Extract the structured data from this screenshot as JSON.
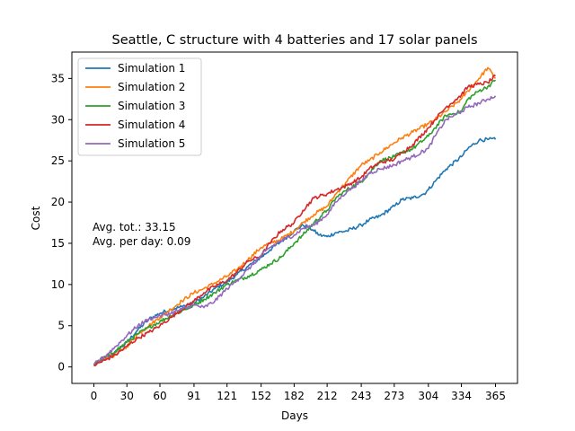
{
  "chart_data": {
    "type": "line",
    "title": "Seattle, C structure with 4 batteries and 17 solar panels",
    "xlabel": "Days",
    "ylabel": "Cost",
    "xlim": [
      -20,
      385
    ],
    "ylim": [
      -2,
      38.2
    ],
    "xticks": [
      0,
      30,
      60,
      91,
      121,
      152,
      182,
      212,
      243,
      273,
      304,
      334,
      365
    ],
    "yticks": [
      0,
      5,
      10,
      15,
      20,
      25,
      30,
      35
    ],
    "grid": false,
    "legend_position": "upper-left",
    "annotations": [
      "Avg. tot.: 33.15",
      "Avg. per day: 0.09"
    ],
    "series": [
      {
        "name": "Simulation 1",
        "color": "#1f77b4",
        "x": [
          0,
          10,
          20,
          30,
          40,
          50,
          60,
          70,
          80,
          91,
          100,
          110,
          121,
          130,
          140,
          152,
          160,
          170,
          182,
          190,
          195,
          200,
          205,
          212,
          220,
          230,
          243,
          250,
          260,
          273,
          280,
          290,
          300,
          304,
          310,
          320,
          334,
          340,
          350,
          358,
          365
        ],
        "y": [
          0.2,
          1.0,
          1.8,
          3.0,
          4.5,
          5.8,
          6.5,
          7.0,
          7.3,
          7.8,
          8.5,
          9.5,
          10.3,
          11.2,
          12.2,
          13.3,
          14.2,
          15.2,
          16.5,
          17.2,
          17.0,
          16.5,
          16.0,
          15.8,
          16.3,
          16.5,
          17.2,
          17.8,
          18.3,
          19.5,
          20.3,
          20.5,
          21.0,
          21.5,
          22.5,
          24.0,
          25.5,
          26.5,
          27.5,
          27.6,
          27.6
        ]
      },
      {
        "name": "Simulation 2",
        "color": "#ff7f0e",
        "x": [
          0,
          10,
          20,
          30,
          40,
          50,
          60,
          70,
          80,
          91,
          100,
          110,
          121,
          130,
          140,
          152,
          160,
          170,
          182,
          190,
          200,
          212,
          220,
          230,
          243,
          250,
          260,
          273,
          280,
          290,
          304,
          310,
          320,
          334,
          340,
          350,
          358,
          365
        ],
        "y": [
          0.3,
          1.0,
          1.5,
          2.5,
          4.0,
          5.0,
          6.0,
          7.0,
          8.0,
          9.0,
          9.5,
          10.2,
          11.0,
          11.8,
          13.0,
          14.5,
          15.0,
          15.5,
          16.5,
          17.5,
          18.5,
          19.5,
          21.0,
          22.5,
          24.5,
          25.0,
          26.0,
          27.2,
          27.8,
          28.5,
          29.5,
          30.0,
          31.0,
          32.5,
          33.5,
          35.0,
          36.3,
          35.0
        ]
      },
      {
        "name": "Simulation 3",
        "color": "#2ca02c",
        "x": [
          0,
          10,
          20,
          30,
          40,
          50,
          60,
          70,
          80,
          91,
          100,
          110,
          121,
          130,
          140,
          152,
          160,
          170,
          182,
          190,
          200,
          212,
          220,
          230,
          243,
          250,
          260,
          273,
          280,
          290,
          304,
          310,
          320,
          334,
          340,
          350,
          358,
          365
        ],
        "y": [
          0.3,
          1.2,
          2.0,
          3.0,
          4.0,
          4.8,
          5.5,
          6.2,
          6.8,
          7.5,
          8.2,
          9.0,
          10.0,
          10.5,
          11.0,
          11.8,
          12.5,
          13.3,
          15.0,
          16.0,
          17.5,
          19.0,
          20.5,
          21.5,
          22.5,
          23.5,
          25.0,
          25.5,
          26.0,
          26.5,
          28.0,
          29.0,
          30.5,
          31.0,
          32.5,
          33.5,
          34.0,
          34.8
        ]
      },
      {
        "name": "Simulation 4",
        "color": "#d62728",
        "x": [
          0,
          10,
          20,
          30,
          40,
          50,
          60,
          70,
          80,
          91,
          100,
          110,
          121,
          130,
          140,
          152,
          160,
          170,
          182,
          190,
          200,
          212,
          220,
          230,
          243,
          250,
          260,
          273,
          280,
          290,
          304,
          310,
          320,
          334,
          340,
          350,
          358,
          365
        ],
        "y": [
          0.2,
          0.8,
          1.5,
          2.5,
          3.5,
          4.2,
          5.0,
          6.0,
          7.0,
          8.0,
          9.0,
          9.8,
          10.5,
          11.5,
          12.8,
          13.5,
          15.0,
          16.5,
          17.5,
          19.0,
          20.5,
          21.0,
          21.5,
          22.0,
          23.0,
          24.0,
          24.8,
          25.2,
          26.0,
          27.0,
          29.0,
          30.0,
          31.5,
          33.0,
          34.0,
          34.3,
          34.5,
          35.3
        ]
      },
      {
        "name": "Simulation 5",
        "color": "#9467bd",
        "x": [
          0,
          10,
          20,
          30,
          40,
          50,
          60,
          70,
          80,
          91,
          100,
          110,
          121,
          130,
          140,
          152,
          160,
          170,
          182,
          190,
          200,
          212,
          220,
          230,
          243,
          250,
          260,
          273,
          280,
          290,
          304,
          310,
          320,
          334,
          340,
          350,
          358,
          365
        ],
        "y": [
          0.3,
          1.3,
          2.5,
          3.8,
          5.0,
          5.8,
          6.2,
          6.5,
          7.0,
          7.5,
          7.2,
          8.0,
          9.5,
          10.5,
          11.8,
          13.5,
          14.5,
          15.3,
          16.0,
          16.8,
          17.2,
          18.5,
          20.0,
          21.3,
          22.5,
          23.5,
          24.0,
          24.5,
          25.0,
          25.5,
          26.5,
          28.0,
          30.0,
          31.0,
          31.5,
          32.0,
          32.5,
          32.9
        ]
      }
    ]
  }
}
